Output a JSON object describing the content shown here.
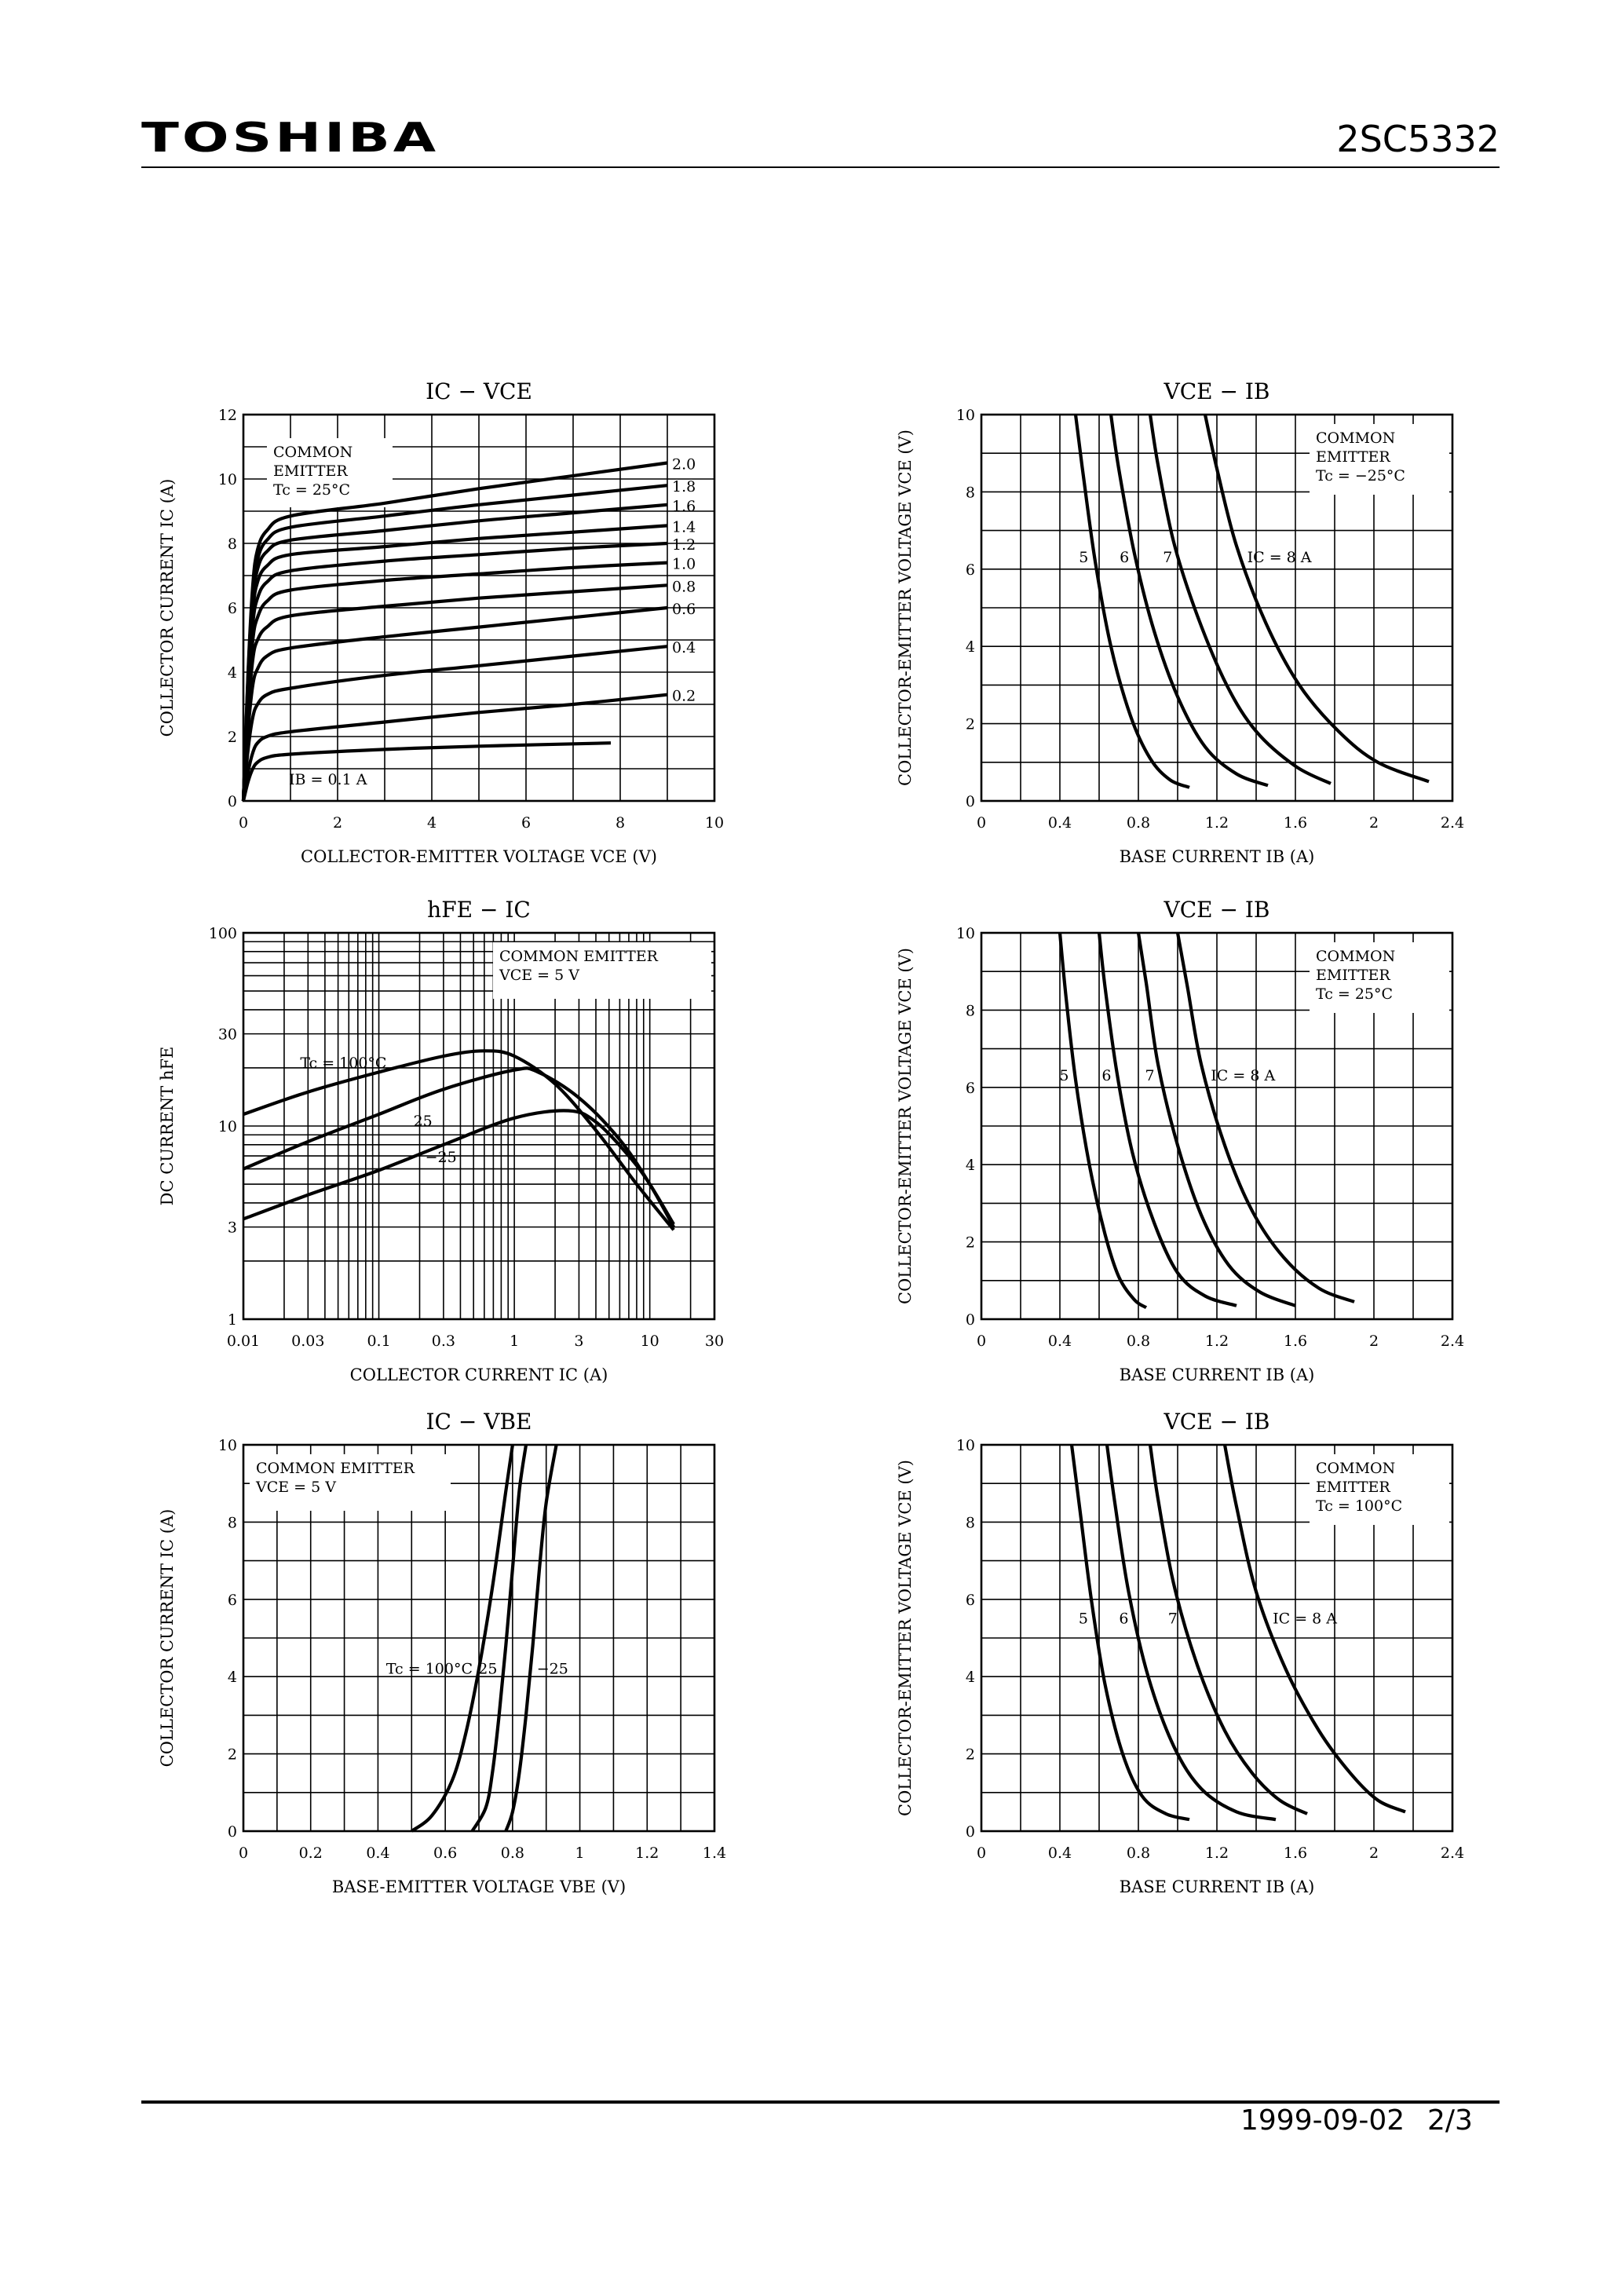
{
  "header": {
    "brand": "TOSHIBA",
    "part_number": "2SC5332"
  },
  "footer": {
    "date": "1999-09-02",
    "page": "2/3"
  },
  "chart_data": [
    {
      "id": "ic_vce",
      "type": "line",
      "title": "IC − VCE",
      "xlabel": "COLLECTOR-EMITTER VOLTAGE  VCE  (V)",
      "ylabel": "COLLECTOR CURRENT  IC  (A)",
      "xlim": [
        0,
        10
      ],
      "ylim": [
        0,
        12
      ],
      "xticks": [
        0,
        2,
        4,
        6,
        8,
        10
      ],
      "yticks": [
        0,
        2,
        4,
        6,
        8,
        10,
        12
      ],
      "xscale": "linear",
      "yscale": "linear",
      "condition": [
        "COMMON",
        "EMITTER",
        "Tc = 25°C"
      ],
      "series": [
        {
          "name": "IB = 0.1 A",
          "x": [
            0,
            0.1,
            0.2,
            0.3,
            0.5,
            1,
            3,
            5,
            7.8
          ],
          "y": [
            0,
            0.6,
            1.0,
            1.2,
            1.35,
            1.45,
            1.6,
            1.7,
            1.8
          ]
        },
        {
          "name": "0.2",
          "x": [
            0,
            0.1,
            0.2,
            0.3,
            0.5,
            1,
            3,
            5,
            7,
            9
          ],
          "y": [
            0,
            0.9,
            1.5,
            1.8,
            2.0,
            2.15,
            2.45,
            2.75,
            3.0,
            3.3
          ]
        },
        {
          "name": "0.4",
          "x": [
            0,
            0.1,
            0.2,
            0.3,
            0.5,
            1,
            3,
            5,
            7,
            9
          ],
          "y": [
            0,
            1.6,
            2.6,
            3.0,
            3.3,
            3.5,
            3.9,
            4.2,
            4.5,
            4.8
          ]
        },
        {
          "name": "0.6",
          "x": [
            0,
            0.1,
            0.2,
            0.3,
            0.5,
            1,
            3,
            5,
            7,
            9
          ],
          "y": [
            0,
            2.2,
            3.6,
            4.1,
            4.5,
            4.75,
            5.1,
            5.4,
            5.7,
            6.0
          ]
        },
        {
          "name": "0.8",
          "x": [
            0,
            0.1,
            0.2,
            0.3,
            0.5,
            1,
            3,
            5,
            7,
            9
          ],
          "y": [
            0,
            2.7,
            4.4,
            5.0,
            5.4,
            5.75,
            6.05,
            6.3,
            6.5,
            6.7
          ]
        },
        {
          "name": "1.0",
          "x": [
            0,
            0.1,
            0.2,
            0.3,
            0.5,
            1,
            3,
            5,
            7,
            9
          ],
          "y": [
            0,
            3.1,
            5.0,
            5.7,
            6.2,
            6.55,
            6.85,
            7.05,
            7.25,
            7.4
          ]
        },
        {
          "name": "1.2",
          "x": [
            0,
            0.1,
            0.2,
            0.3,
            0.5,
            1,
            3,
            5,
            7,
            9
          ],
          "y": [
            0,
            3.4,
            5.5,
            6.3,
            6.8,
            7.15,
            7.45,
            7.65,
            7.85,
            8.0
          ]
        },
        {
          "name": "1.4",
          "x": [
            0,
            0.1,
            0.2,
            0.3,
            0.5,
            1,
            3,
            5,
            7,
            9
          ],
          "y": [
            0,
            3.6,
            5.9,
            6.8,
            7.3,
            7.65,
            7.9,
            8.15,
            8.35,
            8.55
          ]
        },
        {
          "name": "1.6",
          "x": [
            0,
            0.1,
            0.2,
            0.3,
            0.5,
            1,
            3,
            5,
            7,
            9
          ],
          "y": [
            0,
            3.8,
            6.2,
            7.2,
            7.75,
            8.1,
            8.4,
            8.7,
            8.95,
            9.2
          ]
        },
        {
          "name": "1.8",
          "x": [
            0,
            0.1,
            0.2,
            0.3,
            0.5,
            1,
            3,
            5,
            7,
            9
          ],
          "y": [
            0,
            3.9,
            6.5,
            7.5,
            8.1,
            8.5,
            8.85,
            9.2,
            9.5,
            9.8
          ]
        },
        {
          "name": "2.0",
          "x": [
            0,
            0.1,
            0.2,
            0.3,
            0.5,
            1,
            3,
            5,
            7,
            9
          ],
          "y": [
            0,
            4.0,
            6.7,
            7.8,
            8.4,
            8.85,
            9.25,
            9.7,
            10.1,
            10.5
          ]
        }
      ]
    },
    {
      "id": "vce_ib_m25",
      "type": "line",
      "title": "VCE − IB",
      "xlabel": "BASE CURRENT  IB  (A)",
      "ylabel": "COLLECTOR-EMITTER VOLTAGE  VCE  (V)",
      "xlim": [
        0,
        2.4
      ],
      "ylim": [
        0,
        10
      ],
      "xticks": [
        0,
        0.4,
        0.8,
        1.2,
        1.6,
        2,
        2.4
      ],
      "yticks": [
        0,
        2,
        4,
        6,
        8,
        10
      ],
      "xscale": "linear",
      "yscale": "linear",
      "condition": [
        "COMMON",
        "EMITTER",
        "Tc = −25°C"
      ],
      "series": [
        {
          "name": "5",
          "x": [
            0.48,
            0.52,
            0.58,
            0.66,
            0.76,
            0.86,
            0.96,
            1.06
          ],
          "y": [
            10,
            8.4,
            6.2,
            4.0,
            2.2,
            1.1,
            0.55,
            0.35
          ]
        },
        {
          "name": "6",
          "x": [
            0.66,
            0.7,
            0.78,
            0.88,
            1.0,
            1.14,
            1.3,
            1.46
          ],
          "y": [
            10,
            8.6,
            6.4,
            4.4,
            2.7,
            1.4,
            0.7,
            0.4
          ]
        },
        {
          "name": "7",
          "x": [
            0.86,
            0.9,
            0.98,
            1.1,
            1.25,
            1.4,
            1.6,
            1.78
          ],
          "y": [
            10,
            8.7,
            6.7,
            4.8,
            3.0,
            1.8,
            0.9,
            0.45
          ]
        },
        {
          "name": "IC = 8 A",
          "x": [
            1.14,
            1.2,
            1.3,
            1.45,
            1.62,
            1.82,
            2.02,
            2.28
          ],
          "y": [
            10,
            8.6,
            6.6,
            4.6,
            3.0,
            1.8,
            1.0,
            0.5
          ]
        }
      ]
    },
    {
      "id": "hfe_ic",
      "type": "line",
      "title": "hFE − IC",
      "xlabel": "COLLECTOR CURRENT  IC  (A)",
      "ylabel": "DC CURRENT  hFE",
      "xlim": [
        0.01,
        30
      ],
      "ylim": [
        1,
        100
      ],
      "xticks": [
        0.01,
        0.03,
        0.1,
        0.3,
        1,
        3,
        10,
        30
      ],
      "yticks": [
        1,
        3,
        10,
        30,
        100
      ],
      "xscale": "log",
      "yscale": "log",
      "condition": [
        "COMMON EMITTER",
        "VCE = 5 V"
      ],
      "series": [
        {
          "name": "Tc = 100°C",
          "x": [
            0.01,
            0.03,
            0.1,
            0.3,
            0.6,
            1,
            2,
            4,
            8,
            15
          ],
          "y": [
            11.5,
            15,
            19,
            23,
            24.5,
            23,
            16.5,
            9.5,
            5,
            2.9
          ]
        },
        {
          "name": "25",
          "x": [
            0.01,
            0.03,
            0.1,
            0.3,
            1,
            1.5,
            3,
            6,
            10,
            15
          ],
          "y": [
            6,
            8.3,
            11.5,
            15.5,
            19.5,
            19,
            14,
            8.5,
            5,
            3
          ]
        },
        {
          "name": "−25",
          "x": [
            0.01,
            0.03,
            0.1,
            0.3,
            1,
            2.5,
            4,
            7,
            10,
            15
          ],
          "y": [
            3.3,
            4.4,
            5.9,
            8,
            11,
            12,
            10.5,
            7,
            5,
            3.1
          ]
        }
      ]
    },
    {
      "id": "vce_ib_25",
      "type": "line",
      "title": "VCE − IB",
      "xlabel": "BASE CURRENT  IB  (A)",
      "ylabel": "COLLECTOR-EMITTER VOLTAGE  VCE  (V)",
      "xlim": [
        0,
        2.4
      ],
      "ylim": [
        0,
        10
      ],
      "xticks": [
        0,
        0.4,
        0.8,
        1.2,
        1.6,
        2,
        2.4
      ],
      "yticks": [
        0,
        2,
        4,
        6,
        8,
        10
      ],
      "xscale": "linear",
      "yscale": "linear",
      "condition": [
        "COMMON",
        "EMITTER",
        "Tc = 25°C"
      ],
      "series": [
        {
          "name": "5",
          "x": [
            0.4,
            0.43,
            0.48,
            0.55,
            0.63,
            0.7,
            0.78,
            0.84
          ],
          "y": [
            10,
            8.4,
            6.2,
            4.0,
            2.2,
            1.1,
            0.5,
            0.3
          ]
        },
        {
          "name": "6",
          "x": [
            0.6,
            0.63,
            0.69,
            0.77,
            0.88,
            1.0,
            1.14,
            1.3
          ],
          "y": [
            10,
            8.6,
            6.4,
            4.3,
            2.5,
            1.2,
            0.6,
            0.35
          ]
        },
        {
          "name": "7",
          "x": [
            0.8,
            0.84,
            0.9,
            1.0,
            1.12,
            1.26,
            1.42,
            1.6
          ],
          "y": [
            10,
            8.7,
            6.6,
            4.5,
            2.7,
            1.4,
            0.7,
            0.35
          ]
        },
        {
          "name": "IC = 8 A",
          "x": [
            1.0,
            1.05,
            1.12,
            1.24,
            1.38,
            1.54,
            1.72,
            1.9
          ],
          "y": [
            10,
            8.6,
            6.6,
            4.5,
            2.8,
            1.6,
            0.8,
            0.45
          ]
        }
      ]
    },
    {
      "id": "ic_vbe",
      "type": "line",
      "title": "IC − VBE",
      "xlabel": "BASE-EMITTER VOLTAGE  VBE  (V)",
      "ylabel": "COLLECTOR CURRENT  IC  (A)",
      "xlim": [
        0,
        1.4
      ],
      "ylim": [
        0,
        10
      ],
      "xticks": [
        0,
        0.2,
        0.4,
        0.6,
        0.8,
        1.0,
        1.2,
        1.4
      ],
      "yticks": [
        0,
        2,
        4,
        6,
        8,
        10
      ],
      "xscale": "linear",
      "yscale": "linear",
      "condition": [
        "COMMON EMITTER",
        "VCE = 5 V"
      ],
      "series": [
        {
          "name": "Tc = 100°C",
          "x": [
            0.5,
            0.56,
            0.62,
            0.66,
            0.7,
            0.74,
            0.78,
            0.8
          ],
          "y": [
            0,
            0.4,
            1.3,
            2.5,
            4.2,
            6.3,
            8.8,
            10
          ]
        },
        {
          "name": "25",
          "x": [
            0.68,
            0.72,
            0.74,
            0.76,
            0.78,
            0.8,
            0.82,
            0.84
          ],
          "y": [
            0,
            0.6,
            1.5,
            3.0,
            4.8,
            6.8,
            8.8,
            10
          ]
        },
        {
          "name": "−25",
          "x": [
            0.78,
            0.8,
            0.82,
            0.84,
            0.86,
            0.88,
            0.9,
            0.93
          ],
          "y": [
            0,
            0.5,
            1.5,
            3.0,
            4.8,
            6.8,
            8.5,
            10
          ]
        }
      ]
    },
    {
      "id": "vce_ib_100",
      "type": "line",
      "title": "VCE − IB",
      "xlabel": "BASE CURRENT  IB  (A)",
      "ylabel": "COLLECTOR-EMITTER VOLTAGE  VCE  (V)",
      "xlim": [
        0,
        2.4
      ],
      "ylim": [
        0,
        10
      ],
      "xticks": [
        0,
        0.4,
        0.8,
        1.2,
        1.6,
        2,
        2.4
      ],
      "yticks": [
        0,
        2,
        4,
        6,
        8,
        10
      ],
      "xscale": "linear",
      "yscale": "linear",
      "condition": [
        "COMMON",
        "EMITTER",
        "Tc = 100°C"
      ],
      "series": [
        {
          "name": "5",
          "x": [
            0.46,
            0.5,
            0.56,
            0.63,
            0.72,
            0.82,
            0.94,
            1.06
          ],
          "y": [
            10,
            8.4,
            6.0,
            3.8,
            2.0,
            0.9,
            0.45,
            0.3
          ]
        },
        {
          "name": "6",
          "x": [
            0.64,
            0.68,
            0.75,
            0.85,
            0.98,
            1.12,
            1.3,
            1.5
          ],
          "y": [
            10,
            8.5,
            6.2,
            4.0,
            2.2,
            1.1,
            0.5,
            0.3
          ]
        },
        {
          "name": "7",
          "x": [
            0.86,
            0.9,
            0.98,
            1.1,
            1.24,
            1.38,
            1.52,
            1.66
          ],
          "y": [
            10,
            8.6,
            6.4,
            4.3,
            2.6,
            1.5,
            0.8,
            0.45
          ]
        },
        {
          "name": "IC = 8 A",
          "x": [
            1.24,
            1.3,
            1.4,
            1.55,
            1.72,
            1.88,
            2.02,
            2.16
          ],
          "y": [
            10,
            8.4,
            6.2,
            4.2,
            2.6,
            1.5,
            0.8,
            0.5
          ]
        }
      ]
    }
  ]
}
